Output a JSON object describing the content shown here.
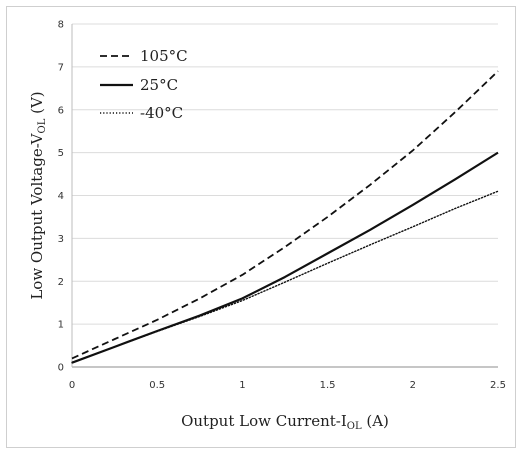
{
  "chart_data": {
    "type": "line",
    "title": "",
    "xlabel": {
      "main": "Output Low Current-I",
      "sub": "OL",
      "unit": " (A)"
    },
    "ylabel": {
      "main": "Low Output Voltage-V",
      "sub": "OL",
      "unit": " (V)"
    },
    "xlim": [
      0,
      2.5
    ],
    "ylim": [
      0,
      8
    ],
    "xticks": [
      0,
      0.5,
      1,
      1.5,
      2,
      2.5
    ],
    "xtick_labels": [
      "0",
      "0.5",
      "1",
      "1.5",
      "2",
      "2.5"
    ],
    "yticks": [
      0,
      1,
      2,
      3,
      4,
      5,
      6,
      7,
      8
    ],
    "ytick_labels": [
      "0",
      "1",
      "2",
      "3",
      "4",
      "5",
      "6",
      "7",
      "8"
    ],
    "grid": "horizontal",
    "legend_position": "top-left",
    "series": [
      {
        "name": "105°C",
        "style": "dashed",
        "color": "#111111",
        "x": [
          0,
          0.25,
          0.5,
          0.75,
          1.0,
          1.25,
          1.5,
          1.75,
          2.0,
          2.25,
          2.5
        ],
        "y": [
          0.2,
          0.65,
          1.1,
          1.6,
          2.15,
          2.8,
          3.5,
          4.25,
          5.05,
          5.95,
          6.9
        ]
      },
      {
        "name": "25°C",
        "style": "solid",
        "color": "#111111",
        "x": [
          0,
          0.25,
          0.5,
          0.75,
          1.0,
          1.25,
          1.5,
          1.75,
          2.0,
          2.25,
          2.5
        ],
        "y": [
          0.1,
          0.47,
          0.84,
          1.2,
          1.6,
          2.1,
          2.65,
          3.2,
          3.78,
          4.38,
          5.0
        ]
      },
      {
        "name": "-40°C",
        "style": "dotted",
        "color": "#111111",
        "x": [
          0,
          0.25,
          0.5,
          0.75,
          1.0,
          1.25,
          1.5,
          1.75,
          2.0,
          2.25,
          2.5
        ],
        "y": [
          0.1,
          0.47,
          0.83,
          1.18,
          1.55,
          1.98,
          2.42,
          2.85,
          3.27,
          3.7,
          4.1
        ]
      }
    ]
  }
}
